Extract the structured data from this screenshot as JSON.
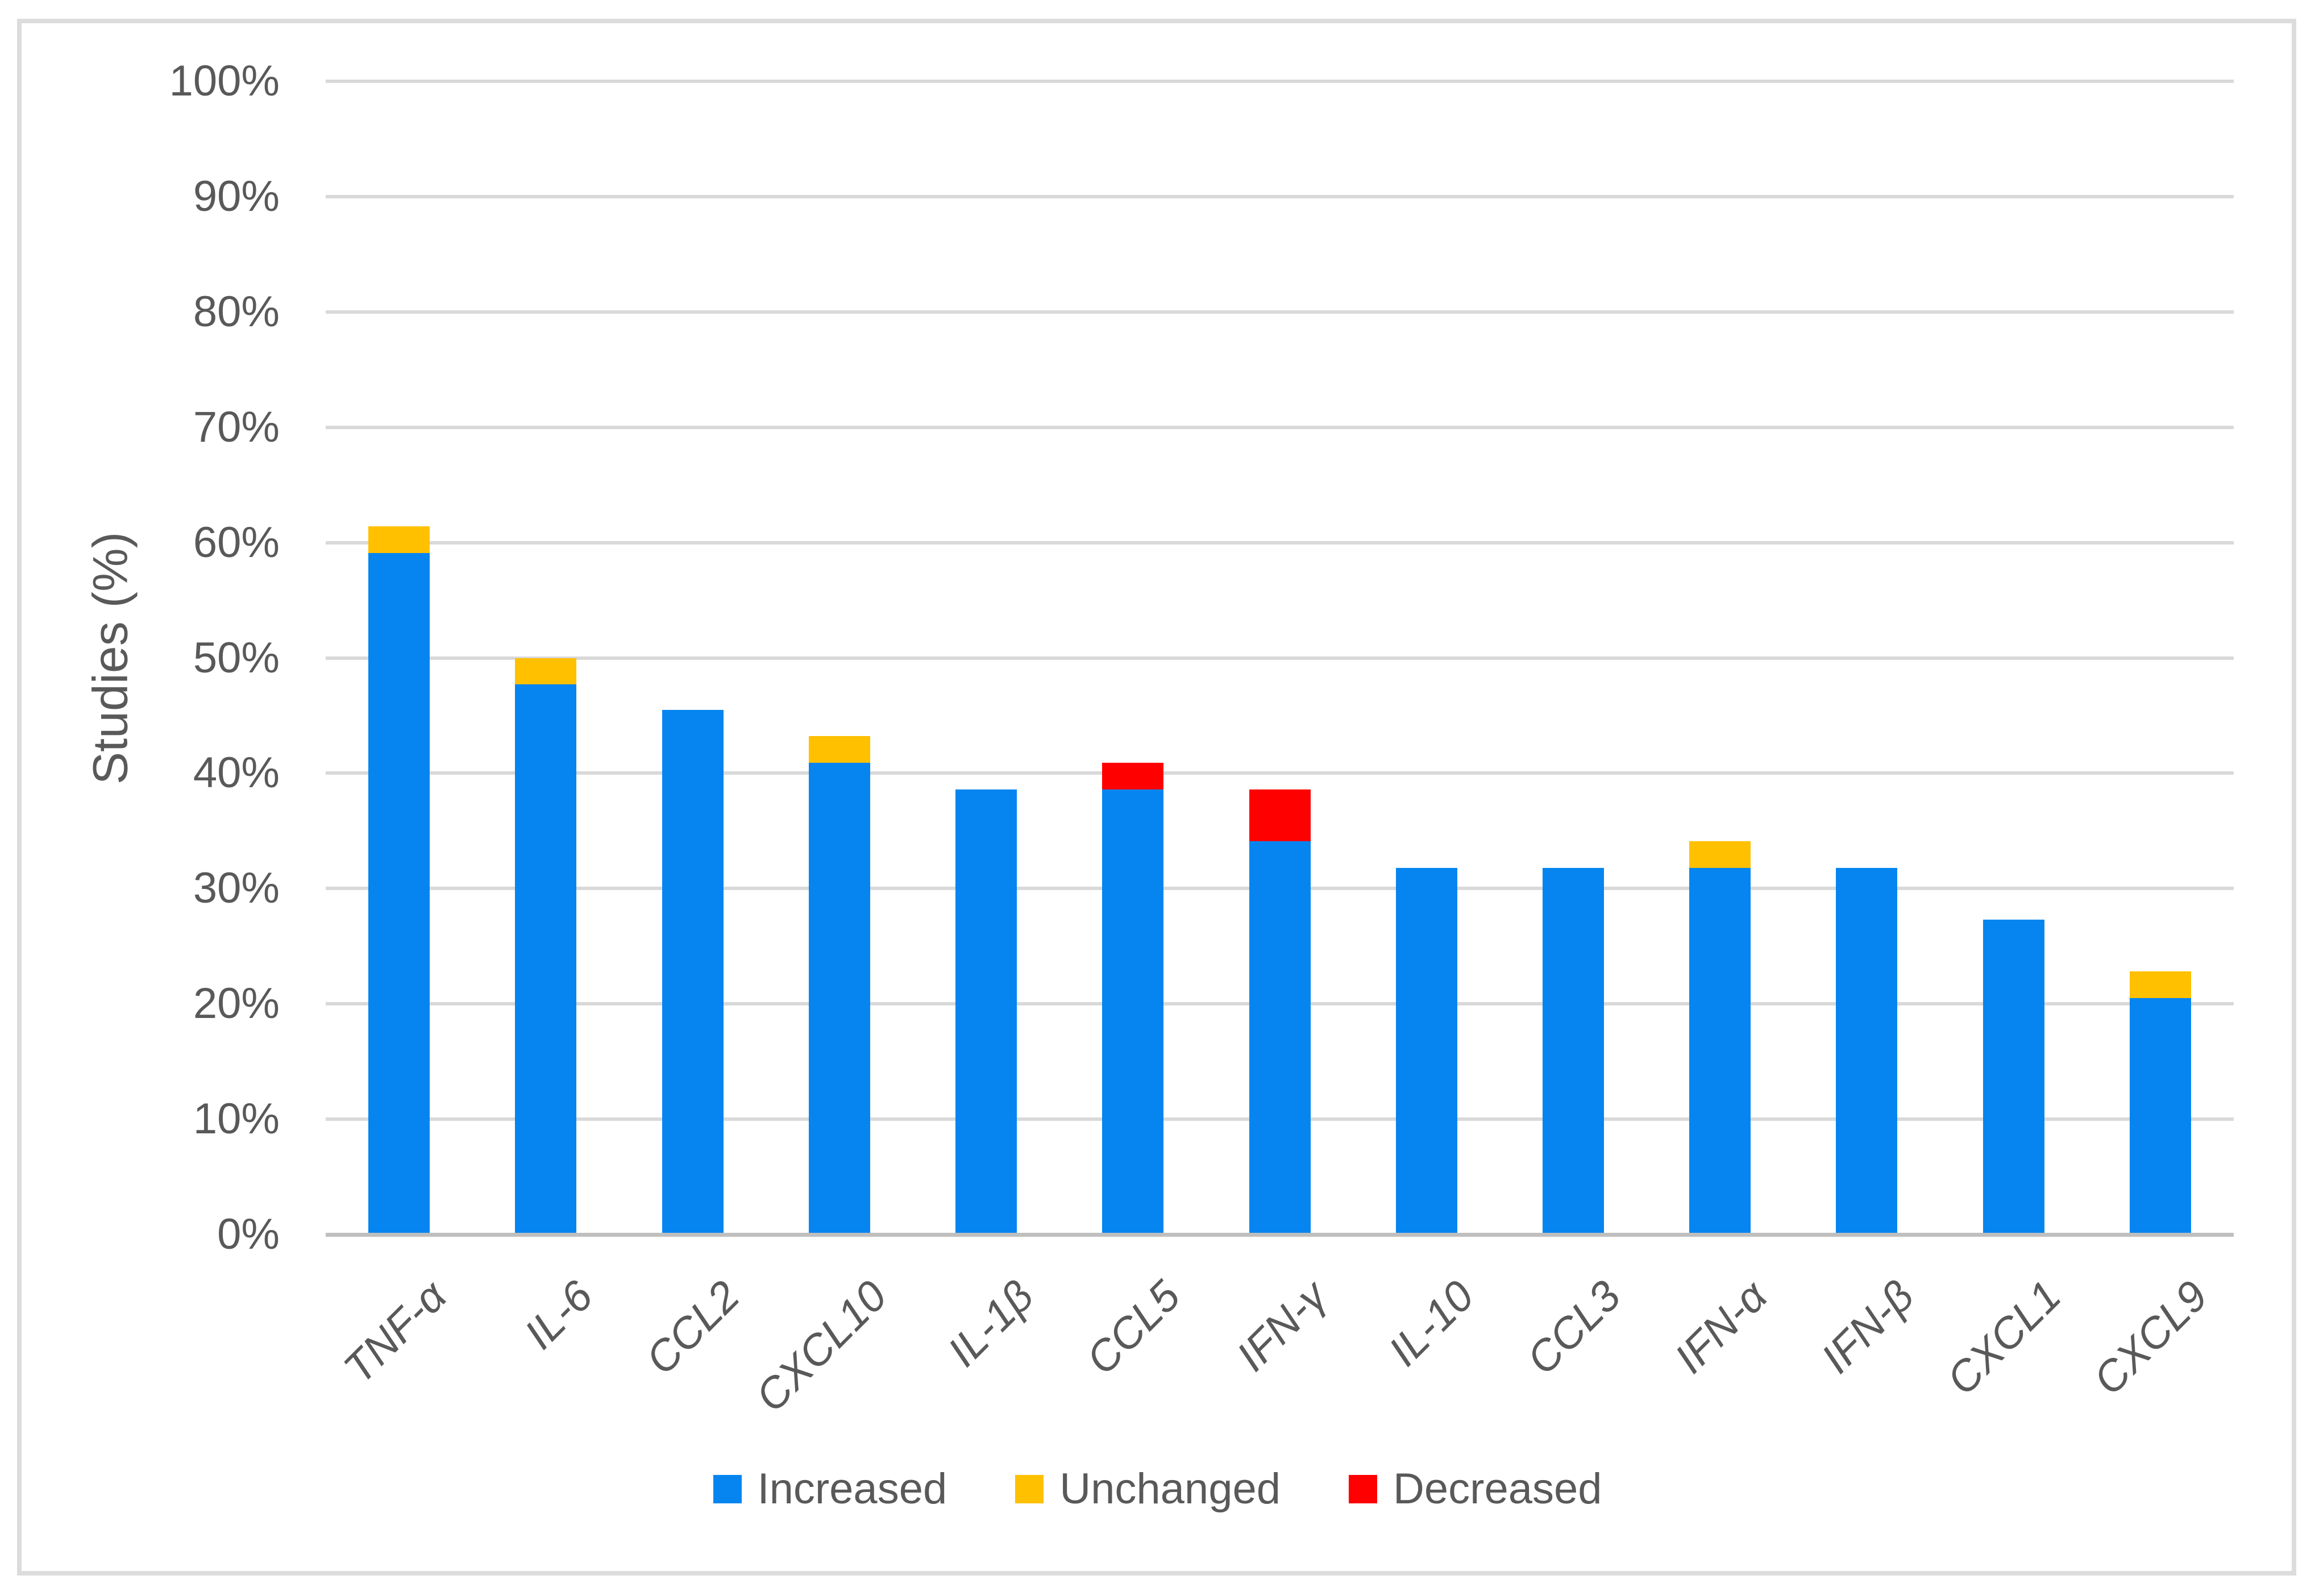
{
  "chart_data": {
    "type": "bar",
    "stacked": true,
    "title": "",
    "xlabel": "",
    "ylabel": "Studies (%)",
    "ylim": [
      0,
      100
    ],
    "ytick_step": 10,
    "yticks": [
      "0%",
      "10%",
      "20%",
      "30%",
      "40%",
      "50%",
      "60%",
      "70%",
      "80%",
      "90%",
      "100%"
    ],
    "grid": true,
    "legend_position": "bottom",
    "categories": [
      "TNF-α",
      "IL-6",
      "CCL2",
      "CXCL10",
      "IL-1β",
      "CCL5",
      "IFN-γ",
      "IL-10",
      "CCL3",
      "IFN-α",
      "IFN-β",
      "CXCL1",
      "CXCL9"
    ],
    "series": [
      {
        "name": "Increased",
        "color": "#0685f0",
        "values": [
          59.1,
          47.7,
          45.5,
          40.9,
          38.6,
          38.6,
          34.1,
          31.8,
          31.8,
          31.8,
          31.8,
          27.3,
          20.5
        ]
      },
      {
        "name": "Unchanged",
        "color": "#ffc000",
        "values": [
          2.3,
          2.3,
          0,
          2.3,
          0,
          0,
          0,
          0,
          0,
          2.3,
          0,
          0,
          2.3
        ]
      },
      {
        "name": "Decreased",
        "color": "#ff0000",
        "values": [
          0,
          0,
          0,
          0,
          0,
          2.3,
          4.5,
          0,
          0,
          0,
          0,
          0,
          0
        ]
      }
    ]
  }
}
